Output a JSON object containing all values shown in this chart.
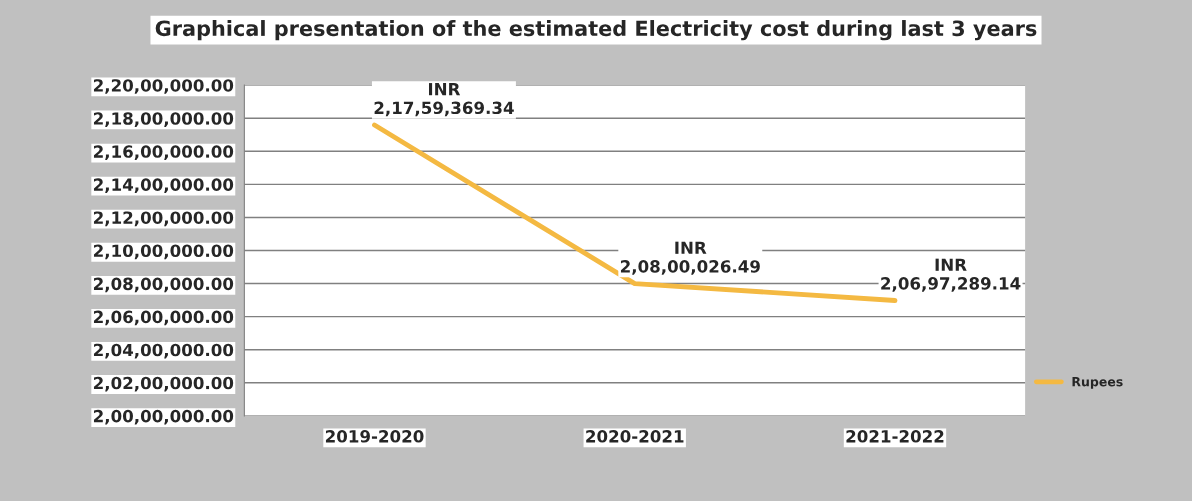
{
  "chart_data": {
    "type": "line",
    "title": "Graphical presentation of the estimated Electricity cost during last 3 years",
    "categories": [
      "2019-2020",
      "2020-2021",
      "2021-2022"
    ],
    "series": [
      {
        "name": "Rupees",
        "color": "#f4b942",
        "values": [
          21759369.34,
          20800026.49,
          20697289.14
        ],
        "value_labels": [
          "INR\n2,17,59,369.34",
          "INR\n2,08,00,026.49",
          "INR\n2,06,97,289.14"
        ]
      }
    ],
    "ylim": [
      20000000,
      22000000
    ],
    "yticks": [
      {
        "value": 20000000,
        "label": "2,00,00,000.00"
      },
      {
        "value": 20200000,
        "label": "2,02,00,000.00"
      },
      {
        "value": 20400000,
        "label": "2,04,00,000.00"
      },
      {
        "value": 20600000,
        "label": "2,06,00,000.00"
      },
      {
        "value": 20800000,
        "label": "2,08,00,000.00"
      },
      {
        "value": 21000000,
        "label": "2,10,00,000.00"
      },
      {
        "value": 21200000,
        "label": "2,12,00,000.00"
      },
      {
        "value": 21400000,
        "label": "2,14,00,000.00"
      },
      {
        "value": 21600000,
        "label": "2,16,00,000.00"
      },
      {
        "value": 21800000,
        "label": "2,18,00,000.00"
      },
      {
        "value": 22000000,
        "label": "2,20,00,000.00"
      }
    ],
    "grid": "y",
    "legend": "right",
    "marker": "none",
    "line_style": "solid"
  }
}
